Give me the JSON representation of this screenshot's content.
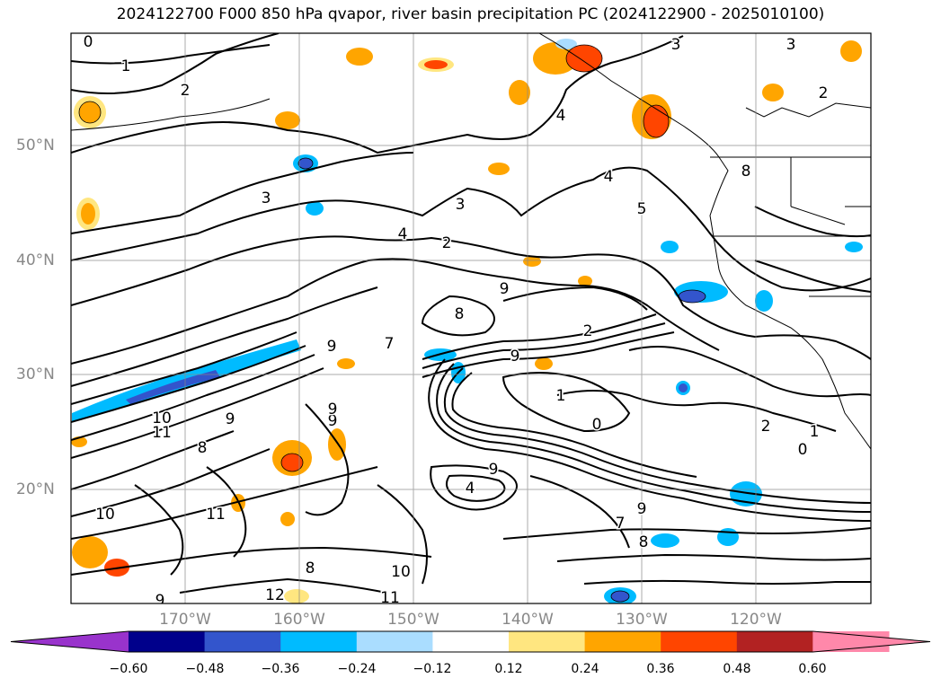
{
  "title": "2024122700 F000 850 hPa qvapor, river basin precipitation PC (2024122900 - 2025010100)",
  "lat_labels": [
    "50°N",
    "40°N",
    "30°N",
    "20°N"
  ],
  "lon_labels": [
    "170°W",
    "160°W",
    "150°W",
    "140°W",
    "130°W",
    "120°W"
  ],
  "colorbar": {
    "ticks": [
      "−0.60",
      "−0.48",
      "−0.36",
      "−0.24",
      "−0.12",
      "0.12",
      "0.24",
      "0.36",
      "0.48",
      "0.60"
    ],
    "colors": [
      "#9933cc",
      "#00008b",
      "#3355cc",
      "#00bbff",
      "#aaddff",
      "#ffffff",
      "#ffe680",
      "#ffa500",
      "#ff4500",
      "#b22222",
      "#ff88aa",
      "#ff88aa"
    ]
  },
  "contour_labels": [
    "3",
    "3",
    "2",
    "4",
    "4",
    "5",
    "3",
    "2",
    "4",
    "9",
    "8",
    "7",
    "9",
    "2",
    "9",
    "1",
    "0",
    "2",
    "1",
    "0",
    "10",
    "11",
    "9",
    "8",
    "9",
    "4",
    "9",
    "7",
    "9",
    "8",
    "10",
    "11",
    "12",
    "9",
    "8",
    "10",
    "11",
    "3",
    "2",
    "1",
    "0",
    "8",
    "9"
  ]
}
